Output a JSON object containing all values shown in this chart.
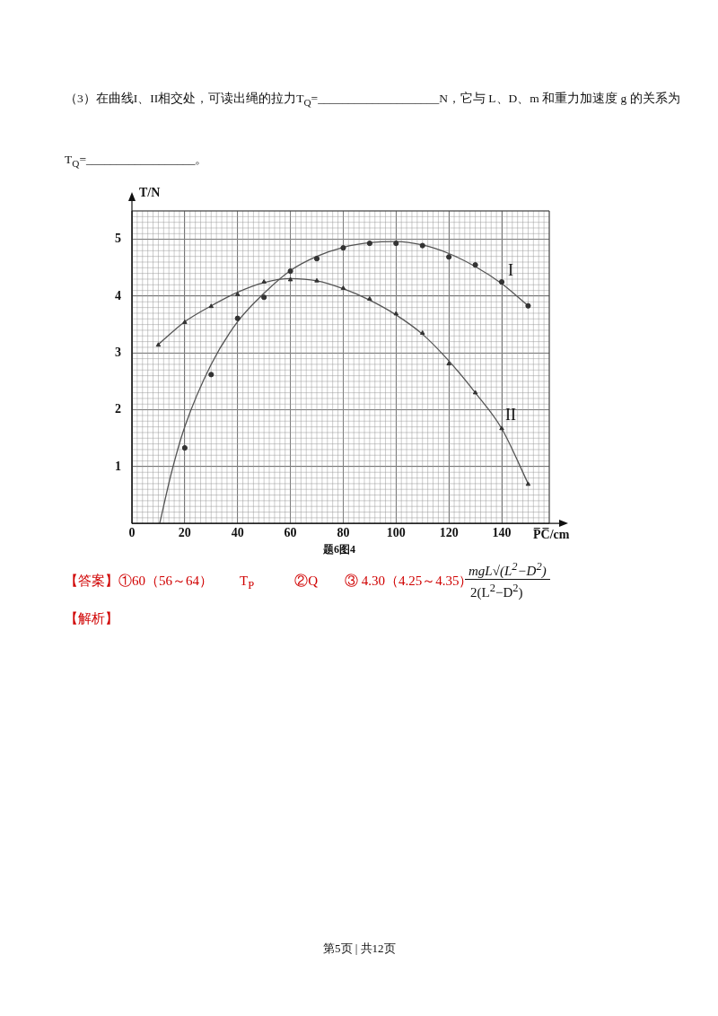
{
  "chart_data": {
    "type": "scatter",
    "xlabel": "P̅C̅/cm",
    "ylabel": "T/N",
    "xlim": [
      0,
      158
    ],
    "ylim": [
      0,
      5.5
    ],
    "xticks": [
      0,
      20,
      40,
      60,
      80,
      100,
      120,
      140
    ],
    "yticks": [
      1,
      2,
      3,
      4,
      5
    ],
    "grid": true,
    "legend": false,
    "series": [
      {
        "type": "scatter",
        "marker": "circle",
        "color": "#333333",
        "x": [
          20,
          30,
          40,
          50,
          60,
          70,
          80,
          90,
          100,
          110,
          120,
          130,
          140,
          150
        ],
        "values": [
          1.33,
          2.62,
          3.61,
          3.98,
          4.44,
          4.66,
          4.85,
          4.93,
          4.93,
          4.89,
          4.69,
          4.55,
          4.25,
          3.83
        ]
      },
      {
        "type": "scatter",
        "marker": "triangle",
        "color": "#333333",
        "x": [
          10,
          20,
          30,
          40,
          50,
          60,
          70,
          80,
          90,
          100,
          110,
          120,
          130,
          140,
          150
        ],
        "values": [
          3.14,
          3.54,
          3.82,
          4.03,
          4.25,
          4.29,
          4.27,
          4.14,
          3.95,
          3.69,
          3.35,
          2.81,
          2.3,
          1.67,
          0.69
        ]
      },
      {
        "type": "line",
        "name": "I",
        "marker": "none",
        "line_style": "solid",
        "color": "#555555",
        "x": [
          10.5,
          15,
          20,
          30,
          40,
          50,
          60,
          70,
          80,
          90,
          100,
          110,
          120,
          130,
          140,
          150
        ],
        "values": [
          0,
          0.9,
          1.7,
          2.8,
          3.55,
          4.05,
          4.45,
          4.7,
          4.86,
          4.94,
          4.96,
          4.9,
          4.75,
          4.52,
          4.22,
          3.83
        ]
      },
      {
        "type": "line",
        "name": "II",
        "marker": "none",
        "line_style": "solid",
        "color": "#555555",
        "x": [
          10,
          20,
          30,
          40,
          50,
          60,
          70,
          80,
          90,
          100,
          110,
          120,
          130,
          140,
          150
        ],
        "values": [
          3.15,
          3.55,
          3.83,
          4.07,
          4.24,
          4.31,
          4.27,
          4.13,
          3.93,
          3.67,
          3.33,
          2.86,
          2.3,
          1.67,
          0.7
        ]
      }
    ],
    "annotations": [
      "（3）在曲线I、II相交处，可读出绳的拉力T$_{Q}$=____________________N，它与 L、D、m 和重力加速度 g 的关系为T$_{Q}$=__________________。",
      "题6图4",
      "【答案】①60（56～64）　　T$_{P}$　　　②Q　　③ 4.30（4.25～4.35）",
      "mgL√(L$^{2}$−D$^{2}$)",
      "2(L$^{2}$−D$^{2}$)",
      "【解析】",
      "第5页 | 共12页"
    ]
  }
}
